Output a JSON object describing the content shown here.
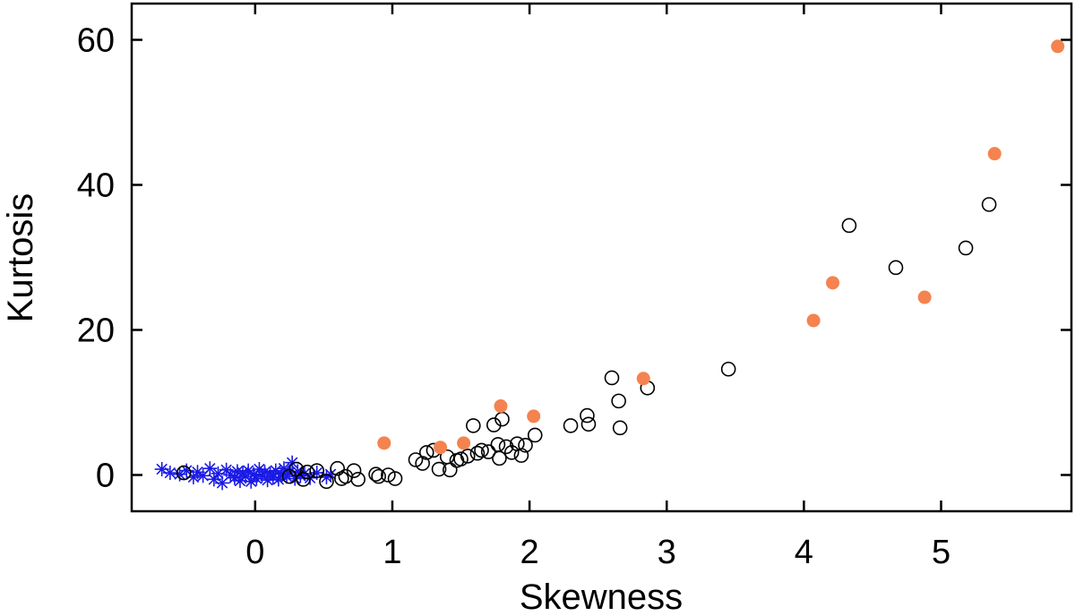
{
  "chart_data": {
    "type": "scatter",
    "title": "",
    "xlabel": "Skewness",
    "ylabel": "Kurtosis",
    "xlim": [
      -0.9,
      5.95
    ],
    "ylim": [
      -5,
      65
    ],
    "xticks": [
      0,
      1,
      2,
      3,
      4,
      5
    ],
    "xtick_labels": [
      "0",
      "1",
      "2",
      "3",
      "4",
      "5"
    ],
    "yticks": [
      0,
      20,
      40,
      60
    ],
    "ytick_labels": [
      "0",
      "20",
      "40",
      "60"
    ],
    "grid": false,
    "legend": null,
    "series": [
      {
        "marker": "asterisk",
        "color": "#1a1ae6",
        "points": [
          [
            -0.68,
            0.8
          ],
          [
            -0.62,
            0.3
          ],
          [
            -0.55,
            0.1
          ],
          [
            -0.5,
            0.6
          ],
          [
            -0.45,
            -0.3
          ],
          [
            -0.42,
            0.4
          ],
          [
            -0.38,
            -0.1
          ],
          [
            -0.33,
            0.9
          ],
          [
            -0.3,
            -0.6
          ],
          [
            -0.27,
            0.2
          ],
          [
            -0.24,
            -1.1
          ],
          [
            -0.21,
            0.7
          ],
          [
            -0.18,
            0.0
          ],
          [
            -0.15,
            -0.4
          ],
          [
            -0.13,
            0.5
          ],
          [
            -0.11,
            -0.8
          ],
          [
            -0.09,
            0.3
          ],
          [
            -0.07,
            -0.2
          ],
          [
            -0.05,
            0.6
          ],
          [
            -0.03,
            -0.9
          ],
          [
            -0.01,
            0.1
          ],
          [
            0.01,
            -0.5
          ],
          [
            0.03,
            0.8
          ],
          [
            0.05,
            -0.1
          ],
          [
            0.07,
            0.4
          ],
          [
            0.09,
            -0.7
          ],
          [
            0.11,
            0.2
          ],
          [
            0.13,
            -0.3
          ],
          [
            0.15,
            0.6
          ],
          [
            0.17,
            -0.6
          ],
          [
            0.19,
            0.1
          ],
          [
            0.21,
            0.9
          ],
          [
            0.23,
            -0.2
          ],
          [
            0.25,
            0.3
          ],
          [
            0.27,
            1.7
          ],
          [
            0.29,
            -0.5
          ],
          [
            0.31,
            0.5
          ],
          [
            0.33,
            -0.1
          ],
          [
            0.36,
            0.2
          ],
          [
            0.4,
            -0.4
          ],
          [
            0.45,
            0.3
          ],
          [
            0.52,
            -0.3
          ],
          [
            0.55,
            0.1
          ]
        ]
      },
      {
        "marker": "open-circle",
        "color": "#000000",
        "points": [
          [
            -0.52,
            0.3
          ],
          [
            0.25,
            -0.2
          ],
          [
            0.3,
            0.8
          ],
          [
            0.35,
            -0.6
          ],
          [
            0.38,
            0.4
          ],
          [
            0.45,
            0.6
          ],
          [
            0.52,
            -0.9
          ],
          [
            0.6,
            0.9
          ],
          [
            0.63,
            -0.5
          ],
          [
            0.66,
            -0.2
          ],
          [
            0.72,
            0.6
          ],
          [
            0.75,
            -0.6
          ],
          [
            0.88,
            0.1
          ],
          [
            0.9,
            -0.2
          ],
          [
            0.97,
            0.0
          ],
          [
            1.02,
            -0.5
          ],
          [
            1.17,
            2.1
          ],
          [
            1.22,
            1.6
          ],
          [
            1.25,
            3.1
          ],
          [
            1.3,
            3.4
          ],
          [
            1.34,
            0.8
          ],
          [
            1.4,
            2.5
          ],
          [
            1.42,
            0.7
          ],
          [
            1.47,
            2.0
          ],
          [
            1.5,
            2.2
          ],
          [
            1.55,
            2.6
          ],
          [
            1.59,
            6.8
          ],
          [
            1.62,
            3.0
          ],
          [
            1.65,
            3.4
          ],
          [
            1.7,
            3.2
          ],
          [
            1.74,
            6.9
          ],
          [
            1.77,
            4.2
          ],
          [
            1.78,
            2.3
          ],
          [
            1.8,
            7.7
          ],
          [
            1.83,
            3.9
          ],
          [
            1.87,
            3.1
          ],
          [
            1.91,
            4.3
          ],
          [
            1.94,
            2.7
          ],
          [
            1.97,
            4.1
          ],
          [
            2.04,
            5.5
          ],
          [
            2.3,
            6.8
          ],
          [
            2.42,
            8.2
          ],
          [
            2.43,
            7.0
          ],
          [
            2.6,
            13.4
          ],
          [
            2.65,
            10.2
          ],
          [
            2.66,
            6.5
          ],
          [
            2.86,
            12.0
          ],
          [
            3.45,
            14.6
          ],
          [
            4.33,
            34.4
          ],
          [
            4.67,
            28.6
          ],
          [
            5.18,
            31.3
          ],
          [
            5.35,
            37.3
          ]
        ]
      },
      {
        "marker": "filled-circle",
        "color": "#f4834f",
        "points": [
          [
            0.94,
            4.4
          ],
          [
            1.35,
            3.8
          ],
          [
            1.52,
            4.4
          ],
          [
            1.79,
            9.5
          ],
          [
            2.03,
            8.1
          ],
          [
            2.83,
            13.3
          ],
          [
            4.07,
            21.3
          ],
          [
            4.21,
            26.5
          ],
          [
            4.88,
            24.5
          ],
          [
            5.39,
            44.3
          ],
          [
            5.85,
            59.1
          ]
        ]
      }
    ]
  }
}
